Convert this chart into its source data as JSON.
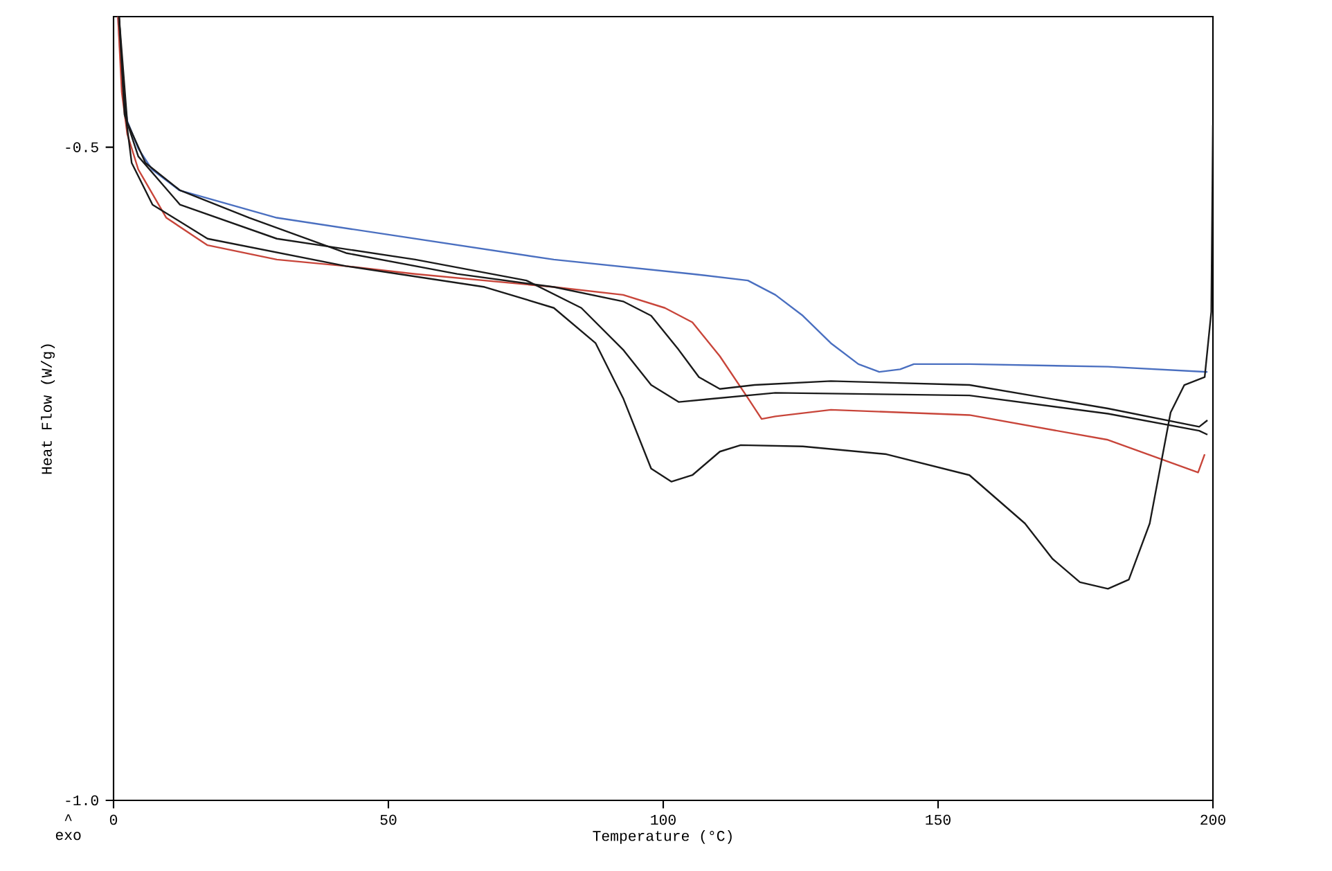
{
  "chart_data": {
    "type": "line",
    "xlabel": "Temperature (°C)",
    "ylabel": "Heat Flow (W/g)",
    "annotations": [
      "^",
      "exo"
    ],
    "xlim": [
      0,
      200
    ],
    "ylim": [
      -1.0,
      -0.4
    ],
    "xticks": [
      0,
      50,
      100,
      150,
      200
    ],
    "yticks": [
      {
        "value": -1.0,
        "label": "-1.0"
      },
      -0.5
    ],
    "grid": false,
    "marker": "none",
    "line_style": "solid",
    "series": [
      {
        "color": "#4a6fc0",
        "x": [
          0.8,
          1.5,
          2.5,
          4.5,
          7,
          12,
          29.7,
          54.9,
          80.1,
          105.3,
          115.4,
          120.4,
          125.4,
          130.5,
          135.5,
          139.3,
          143.1,
          145.6,
          155.7,
          180.9,
          199
        ],
        "values": [
          -0.4,
          -0.448,
          -0.48,
          -0.501,
          -0.517,
          -0.533,
          -0.554,
          -0.57,
          -0.586,
          -0.597,
          -0.602,
          -0.613,
          -0.629,
          -0.65,
          -0.666,
          -0.672,
          -0.67,
          -0.666,
          -0.666,
          -0.668,
          -0.672
        ]
      },
      {
        "color": "#c8453a",
        "x": [
          0.8,
          1.5,
          2.5,
          4.5,
          9.6,
          17.1,
          29.7,
          42.3,
          54.9,
          80.1,
          92.7,
          100.3,
          105.3,
          110.3,
          115.4,
          117.9,
          120.4,
          130.5,
          155.7,
          180.9,
          197.3,
          198.5
        ],
        "values": [
          -0.4,
          -0.458,
          -0.49,
          -0.517,
          -0.554,
          -0.575,
          -0.586,
          -0.591,
          -0.597,
          -0.607,
          -0.613,
          -0.623,
          -0.634,
          -0.66,
          -0.692,
          -0.708,
          -0.706,
          -0.701,
          -0.705,
          -0.724,
          -0.749,
          -0.735
        ]
      },
      {
        "color": "#1a1a1a",
        "x": [
          1.0,
          2.0,
          3.3,
          7.1,
          17.1,
          42.3,
          67.5,
          80.1,
          87.7,
          92.7,
          97.8,
          101.5,
          105.3,
          110.3,
          114.1,
          125.4,
          140.6,
          155.7,
          165.8,
          170.8,
          175.8,
          180.9,
          184.7,
          188.5,
          192.3,
          194.8,
          198.5,
          199.7,
          200
        ],
        "values": [
          -0.4,
          -0.469,
          -0.512,
          -0.544,
          -0.57,
          -0.591,
          -0.607,
          -0.623,
          -0.65,
          -0.692,
          -0.746,
          -0.756,
          -0.751,
          -0.733,
          -0.728,
          -0.729,
          -0.735,
          -0.751,
          -0.788,
          -0.815,
          -0.833,
          -0.838,
          -0.831,
          -0.788,
          -0.703,
          -0.682,
          -0.676,
          -0.626,
          -0.483
        ]
      },
      {
        "color": "#1a1a1a",
        "x": [
          1.0,
          2.0,
          4.5,
          12.1,
          29.7,
          54.9,
          75.1,
          85.1,
          92.7,
          97.8,
          102.8,
          107.8,
          120.4,
          155.7,
          180.9,
          197.5,
          199
        ],
        "values": [
          -0.4,
          -0.475,
          -0.507,
          -0.544,
          -0.57,
          -0.586,
          -0.602,
          -0.623,
          -0.655,
          -0.682,
          -0.695,
          -0.693,
          -0.688,
          -0.69,
          -0.704,
          -0.717,
          -0.72
        ]
      },
      {
        "color": "#1a1a1a",
        "x": [
          1.0,
          2.5,
          5.8,
          12.1,
          24.7,
          42.3,
          62.5,
          80.1,
          92.7,
          97.8,
          102.8,
          106.5,
          110.3,
          116.6,
          130.5,
          155.7,
          180.9,
          197.5,
          199
        ],
        "values": [
          -0.4,
          -0.481,
          -0.512,
          -0.533,
          -0.554,
          -0.581,
          -0.597,
          -0.607,
          -0.618,
          -0.629,
          -0.655,
          -0.676,
          -0.685,
          -0.682,
          -0.679,
          -0.682,
          -0.7,
          -0.714,
          -0.709
        ]
      }
    ]
  }
}
